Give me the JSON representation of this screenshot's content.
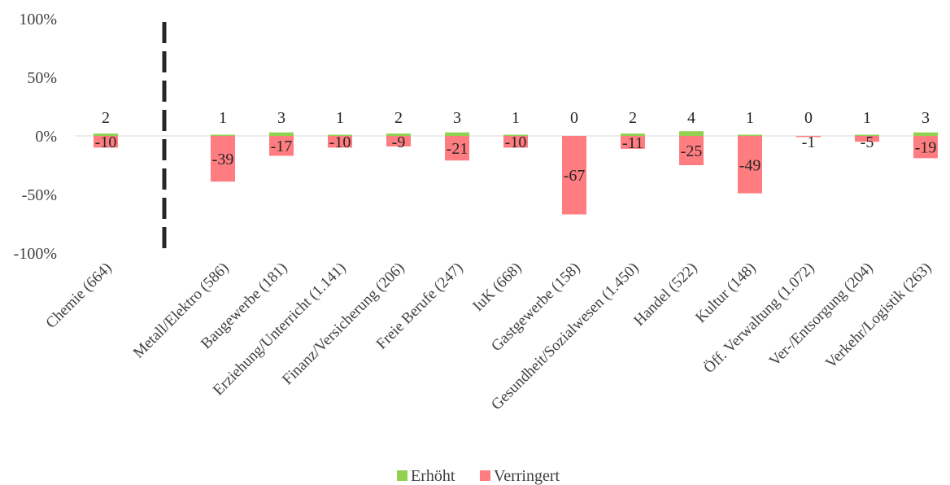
{
  "chart_data": {
    "type": "bar",
    "title": "",
    "xlabel": "",
    "ylabel": "",
    "ylim": [
      -100,
      100
    ],
    "yticks": [
      "100%",
      "50%",
      "0%",
      "-50%",
      "-100%"
    ],
    "ytick_values": [
      100,
      50,
      0,
      -50,
      -100
    ],
    "categories": [
      "Chemie (664)",
      "Metall/Elektro (586)",
      "Baugewerbe (181)",
      "Erziehung/Unterricht (1.141)",
      "Finanz/Versicherung (206)",
      "Freie Berufe (247)",
      "IuK (668)",
      "Gastgewerbe (158)",
      "Gesundheit/Sozialwesen (1.450)",
      "Handel (522)",
      "Kultur (148)",
      "Öff. Verwaltung (1.072)",
      "Ver-/Entsorgung (204)",
      "Verkehr/Logistik (263)"
    ],
    "series": [
      {
        "name": "Erhöht",
        "color": "#92d050",
        "values": [
          2,
          1,
          3,
          1,
          2,
          3,
          1,
          0,
          2,
          4,
          1,
          0,
          1,
          3
        ],
        "labels": [
          "2",
          "1",
          "3",
          "1",
          "2",
          "3",
          "1",
          "0",
          "2",
          "4",
          "1",
          "0",
          "1",
          "3"
        ]
      },
      {
        "name": "Verringert",
        "color": "#ff7c80",
        "values": [
          -10,
          -39,
          -17,
          -10,
          -9,
          -21,
          -10,
          -67,
          -11,
          -25,
          -49,
          -1,
          -5,
          -19
        ],
        "labels": [
          "-10",
          "-39",
          "-17",
          "-10",
          "-9",
          "-21",
          "-10",
          "-67",
          "-11",
          "-25",
          "-49",
          "-1",
          "-5",
          "-19"
        ]
      }
    ],
    "separator_after_category": 0,
    "legend": "bottom",
    "grid": false
  }
}
